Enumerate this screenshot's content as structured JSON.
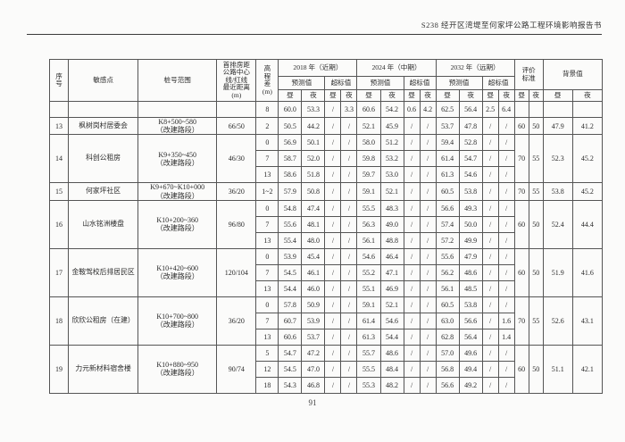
{
  "header": {
    "title": "S238 经开区湾堤至何家坪公路工程环境影响报告书"
  },
  "footer": {
    "page_number": "91"
  },
  "table": {
    "headers": {
      "seq": "序\n号",
      "sensitive_point": "敏感点",
      "stake_range": "桩号范围",
      "distance": "首排房距\n公路中心\n线/红线\n最近距离\n(m)",
      "elevation": "高\n程\n差\n(m)",
      "periods": [
        "2018 年（近期）",
        "2024 年（中期）",
        "2032 年（远期）"
      ],
      "predicted": "预测值",
      "exceed": "超标值",
      "day": "昼",
      "night": "夜",
      "eval_standard": "评价\n标准",
      "background": "背景值"
    },
    "groups": [
      {
        "no": "",
        "name": "",
        "stake": "",
        "distance": "",
        "standard": [
          "",
          ""
        ],
        "background": [
          "",
          ""
        ],
        "rows": [
          {
            "elev": "8",
            "values": [
              "60.0",
              "53.3",
              "/",
              "3.3",
              "60.6",
              "54.2",
              "0.6",
              "4.2",
              "62.5",
              "56.4",
              "2.5",
              "6.4"
            ]
          }
        ]
      },
      {
        "no": "13",
        "name": "枫树岗村居委会",
        "stake": "K8+500~580\n（改建路段）",
        "distance": "66/50",
        "standard": [
          "60",
          "50"
        ],
        "background": [
          "47.9",
          "41.2"
        ],
        "rows": [
          {
            "elev": "2",
            "values": [
              "50.5",
              "44.2",
              "/",
              "/",
              "52.1",
              "45.9",
              "/",
              "/",
              "53.7",
              "47.8",
              "/",
              "/"
            ]
          }
        ]
      },
      {
        "no": "14",
        "name": "科创公租房",
        "stake": "K9+350~450\n（改建路段）",
        "distance": "46/30",
        "standard": [
          "70",
          "55"
        ],
        "background": [
          "52.3",
          "45.2"
        ],
        "rows": [
          {
            "elev": "0",
            "values": [
              "56.9",
              "50.1",
              "/",
              "/",
              "58.0",
              "51.2",
              "/",
              "/",
              "59.4",
              "52.8",
              "/",
              "/"
            ]
          },
          {
            "elev": "7",
            "values": [
              "58.7",
              "52.0",
              "/",
              "/",
              "59.8",
              "53.2",
              "/",
              "/",
              "61.4",
              "54.7",
              "/",
              "/"
            ]
          },
          {
            "elev": "13",
            "values": [
              "58.6",
              "51.8",
              "/",
              "/",
              "59.7",
              "53.0",
              "/",
              "/",
              "61.3",
              "54.6",
              "/",
              "/"
            ]
          }
        ]
      },
      {
        "no": "15",
        "name": "何家坪社区",
        "stake": "K9+670~K10+000\n（改建路段）",
        "distance": "36/20",
        "standard": [
          "70",
          "55"
        ],
        "background": [
          "53.8",
          "45.2"
        ],
        "rows": [
          {
            "elev": "1~2",
            "values": [
              "57.9",
              "50.8",
              "/",
              "/",
              "59.1",
              "52.1",
              "/",
              "/",
              "60.5",
              "53.8",
              "/",
              "/"
            ]
          }
        ]
      },
      {
        "no": "16",
        "name": "山水铭洲楼盘",
        "stake": "K10+200~360\n（改建路段）",
        "distance": "96/80",
        "standard": [
          "60",
          "50"
        ],
        "background": [
          "52.4",
          "44.4"
        ],
        "rows": [
          {
            "elev": "0",
            "values": [
              "54.8",
              "47.4",
              "/",
              "/",
              "55.5",
              "48.3",
              "/",
              "/",
              "56.6",
              "49.3",
              "/",
              "/"
            ]
          },
          {
            "elev": "7",
            "values": [
              "55.6",
              "48.1",
              "/",
              "/",
              "56.3",
              "49.0",
              "/",
              "/",
              "57.4",
              "50.0",
              "/",
              "/"
            ]
          },
          {
            "elev": "13",
            "values": [
              "55.4",
              "48.0",
              "/",
              "/",
              "56.1",
              "48.8",
              "/",
              "/",
              "57.2",
              "49.9",
              "/",
              "/"
            ]
          }
        ]
      },
      {
        "no": "17",
        "name": "金鞍驾校后排居民区",
        "stake": "K10+420~600\n（改建路段）",
        "distance": "120/104",
        "standard": [
          "60",
          "50"
        ],
        "background": [
          "51.9",
          "41.6"
        ],
        "rows": [
          {
            "elev": "0",
            "values": [
              "53.9",
              "45.4",
              "/",
              "/",
              "54.6",
              "46.4",
              "/",
              "/",
              "55.6",
              "47.9",
              "/",
              "/"
            ]
          },
          {
            "elev": "7",
            "values": [
              "54.5",
              "46.1",
              "/",
              "/",
              "55.2",
              "47.1",
              "/",
              "/",
              "56.2",
              "48.6",
              "/",
              "/"
            ]
          },
          {
            "elev": "13",
            "values": [
              "54.4",
              "46.0",
              "/",
              "/",
              "55.1",
              "46.9",
              "/",
              "/",
              "56.1",
              "48.5",
              "/",
              "/"
            ]
          }
        ]
      },
      {
        "no": "18",
        "name": "欣欣公租房（在建）",
        "stake": "K10+700~800\n（改建路段）",
        "distance": "36/20",
        "standard": [
          "70",
          "55"
        ],
        "background": [
          "52.6",
          "43.1"
        ],
        "rows": [
          {
            "elev": "0",
            "values": [
              "57.8",
              "50.9",
              "/",
              "/",
              "59.1",
              "52.1",
              "/",
              "/",
              "60.5",
              "53.8",
              "/",
              "/"
            ]
          },
          {
            "elev": "7",
            "values": [
              "60.7",
              "53.9",
              "/",
              "/",
              "61.4",
              "54.6",
              "/",
              "/",
              "63.0",
              "56.6",
              "/",
              "1.6"
            ]
          },
          {
            "elev": "13",
            "values": [
              "60.6",
              "53.7",
              "/",
              "/",
              "61.3",
              "54.4",
              "/",
              "/",
              "62.8",
              "56.4",
              "/",
              "1.4"
            ]
          }
        ]
      },
      {
        "no": "19",
        "name": "力元新材料宿舍楼",
        "stake": "K10+880~950\n（改建路段）",
        "distance": "90/74",
        "standard": [
          "60",
          "50"
        ],
        "background": [
          "51.1",
          "42.1"
        ],
        "rows": [
          {
            "elev": "5",
            "values": [
              "54.7",
              "47.2",
              "/",
              "/",
              "55.7",
              "48.6",
              "/",
              "/",
              "57.0",
              "49.6",
              "/",
              "/"
            ]
          },
          {
            "elev": "12",
            "values": [
              "54.5",
              "47.0",
              "/",
              "/",
              "55.5",
              "48.4",
              "/",
              "/",
              "56.8",
              "49.4",
              "/",
              "/"
            ]
          },
          {
            "elev": "18",
            "values": [
              "54.3",
              "46.8",
              "/",
              "/",
              "55.3",
              "48.2",
              "/",
              "/",
              "56.6",
              "49.2",
              "/",
              "/"
            ]
          }
        ]
      }
    ]
  }
}
